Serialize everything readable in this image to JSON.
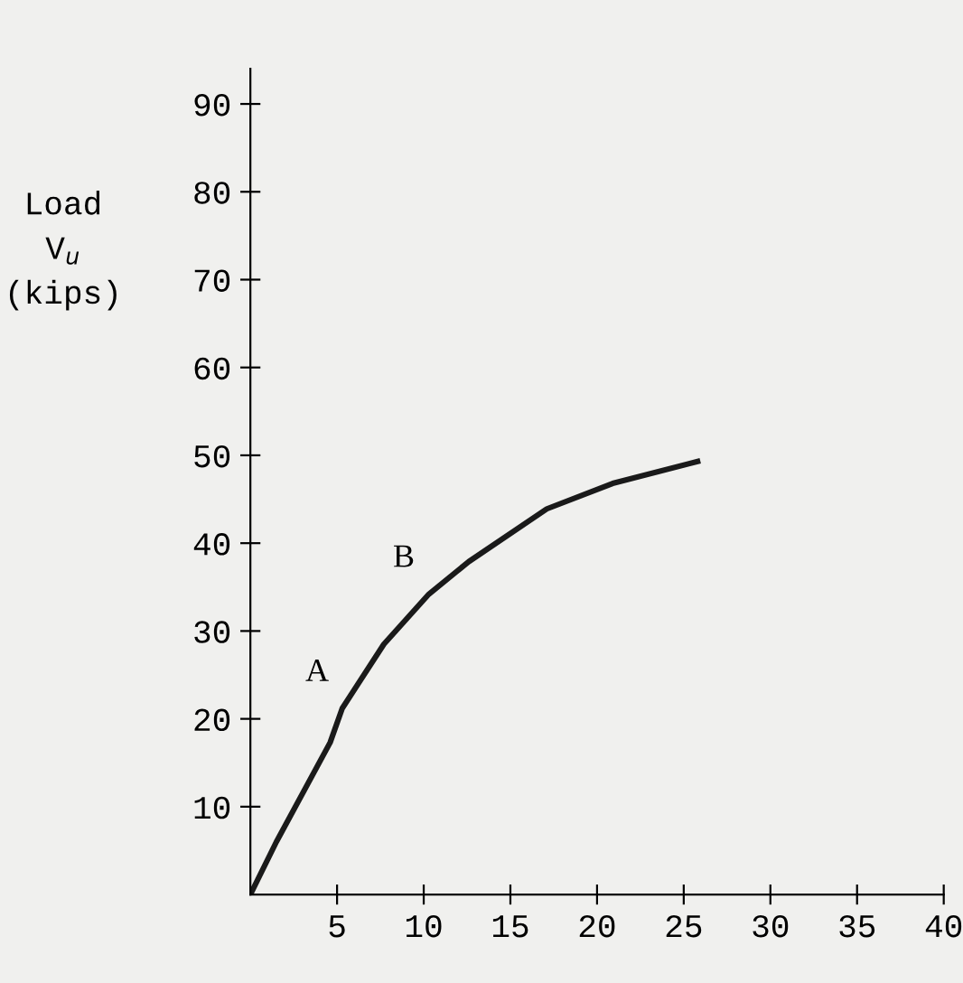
{
  "chart_data": {
    "type": "line",
    "ylabel": "Load\nV$_{u}$\n(kips)",
    "x": [
      0,
      1.5,
      4.6,
      5.3,
      7.7,
      10.3,
      12.6,
      17.1,
      20.9,
      25.8
    ],
    "series": [
      {
        "color": "#1a1a1a",
        "values": [
          0,
          6,
          17.3,
          21.2,
          28.5,
          34.2,
          37.9,
          43.9,
          46.8,
          49.3
        ]
      }
    ],
    "xlim": [
      0,
      40
    ],
    "ylim": [
      0,
      94
    ],
    "xticks": [
      5,
      10,
      15,
      20,
      25,
      30,
      35,
      40
    ],
    "yticks": [
      10,
      20,
      30,
      40,
      50,
      60,
      70,
      80,
      90
    ],
    "annotations": [
      {
        "text": "A",
        "x": 5.3,
        "y": 21.2
      },
      {
        "text": "B",
        "x": 10.3,
        "y": 34.2
      }
    ],
    "grid": false,
    "legend": false,
    "marker": "none",
    "line_style": "solid"
  }
}
